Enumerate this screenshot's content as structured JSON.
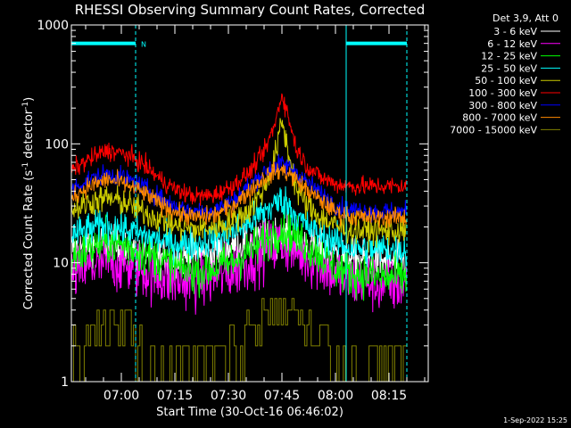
{
  "chart_data": {
    "type": "line",
    "title": "RHESSI Observing Summary Count Rates, Corrected",
    "xlabel": "Start Time (30-Oct-16 06:46:02)",
    "ylabel": "Corrected Count Rate (s⁻¹ detector⁻¹)",
    "ylabel_parts": {
      "main": "Corrected Count Rate (s",
      "sup1": "-1",
      "mid": " detector",
      "sup2": "-1",
      "end": ")"
    },
    "yscale": "log",
    "ylim": [
      1,
      1000
    ],
    "xlim_minutes": [
      0,
      100
    ],
    "xlim_clock": [
      "06:46",
      "08:26"
    ],
    "x_ticks": [
      {
        "label": "07:00",
        "minutes": 14
      },
      {
        "label": "07:15",
        "minutes": 29
      },
      {
        "label": "07:30",
        "minutes": 44
      },
      {
        "label": "07:45",
        "minutes": 59
      },
      {
        "label": "08:00",
        "minutes": 74
      },
      {
        "label": "08:15",
        "minutes": 89
      }
    ],
    "y_ticks": [
      {
        "label": "1",
        "value": 1
      },
      {
        "label": "10",
        "value": 10
      },
      {
        "label": "100",
        "value": 100
      },
      {
        "label": "1000",
        "value": 1000
      }
    ],
    "legend_title": "Det 3,9, Att 0",
    "legend_position": "right",
    "night_marker_label": "N",
    "night_bar_intervals_minutes": [
      [
        0,
        18
      ],
      [
        77,
        94
      ]
    ],
    "saa_lines_minutes": [
      0,
      77
    ],
    "night_lines_minutes": [
      18,
      94
    ],
    "x_minutes": [
      0,
      5,
      10,
      15,
      20,
      25,
      30,
      35,
      40,
      45,
      50,
      54,
      57,
      59,
      61,
      63,
      66,
      70,
      74,
      76,
      78,
      82,
      86,
      90,
      94
    ],
    "series": [
      {
        "name": "3 - 6 keV",
        "color": "#ffffff",
        "noise": 0.08,
        "spiky": false,
        "values": [
          13,
          14,
          14.5,
          13,
          12,
          11,
          11,
          11.5,
          12.5,
          13.5,
          15,
          16,
          17,
          17,
          16.5,
          15,
          14,
          13,
          12,
          11.5,
          11,
          10.5,
          10.5,
          10,
          10
        ]
      },
      {
        "name": "6 - 12 keV",
        "color": "#ff00ff",
        "noise": 0.12,
        "spiky": false,
        "values": [
          8,
          9,
          10,
          9.5,
          8.5,
          7.5,
          7,
          7,
          7.5,
          8.5,
          10.5,
          12.5,
          14,
          14.5,
          14,
          12.5,
          11,
          9.5,
          8,
          7.5,
          7,
          7,
          6.5,
          6.5,
          6.5
        ]
      },
      {
        "name": "12 - 25 keV",
        "color": "#00ff00",
        "noise": 0.09,
        "spiky": false,
        "values": [
          11,
          13,
          15,
          14,
          12,
          10.5,
          9,
          8.5,
          9,
          10,
          12.5,
          15,
          18,
          19,
          18,
          16.5,
          14,
          11.5,
          9,
          8.5,
          8,
          8,
          7.5,
          7.5,
          7.5
        ]
      },
      {
        "name": "25 - 50 keV",
        "color": "#00ffff",
        "noise": 0.07,
        "spiky": false,
        "values": [
          17,
          19,
          21,
          19,
          17,
          15.5,
          14.5,
          14.5,
          16,
          18,
          22,
          27,
          31,
          34,
          30,
          25,
          20,
          17,
          15,
          14,
          13.5,
          13,
          13,
          13,
          13
        ]
      },
      {
        "name": "50 - 100 keV",
        "color": "#cccc00",
        "noise": 0.06,
        "spiky": false,
        "values": [
          28,
          32,
          35,
          32,
          27,
          23,
          20,
          19,
          20,
          22,
          28,
          42,
          75,
          155,
          80,
          42,
          30,
          24,
          20.5,
          19.5,
          19,
          18.5,
          18.5,
          18.5,
          18.5
        ]
      },
      {
        "name": "100 - 300 keV",
        "color": "#ff0000",
        "noise": 0.04,
        "spiky": false,
        "values": [
          60,
          74,
          88,
          82,
          68,
          50,
          40,
          36,
          37,
          44,
          58,
          85,
          145,
          265,
          160,
          92,
          65,
          52,
          46,
          45,
          44,
          44,
          44,
          44,
          44
        ]
      },
      {
        "name": "300 - 800 keV",
        "color": "#0000ff",
        "noise": 0.04,
        "spiky": false,
        "values": [
          42,
          50,
          56,
          52,
          44,
          35,
          29,
          27,
          28,
          33,
          45,
          58,
          65,
          68,
          64,
          58,
          48,
          38,
          31,
          29,
          28,
          27.5,
          27,
          27,
          27
        ]
      },
      {
        "name": "800 - 7000 keV",
        "color": "#ff8800",
        "noise": 0.04,
        "spiky": false,
        "values": [
          36,
          44,
          50,
          46,
          39,
          31,
          26,
          24,
          25,
          30,
          40,
          52,
          58,
          60,
          56,
          50,
          41,
          33,
          27,
          25.5,
          24.5,
          24,
          24,
          24,
          24
        ]
      },
      {
        "name": "7000 - 15000 keV",
        "color": "#808000",
        "noise": 0,
        "spiky": true,
        "values": [
          2.2,
          3,
          3.6,
          3.2,
          2,
          1.5,
          1.3,
          1.3,
          1.4,
          2,
          3.2,
          4.2,
          5,
          5.3,
          4.8,
          4,
          3,
          2.2,
          1.6,
          1.5,
          1.4,
          1.3,
          1.3,
          1.3,
          1.3
        ]
      }
    ]
  },
  "timestamp": "1-Sep-2022 15:25"
}
